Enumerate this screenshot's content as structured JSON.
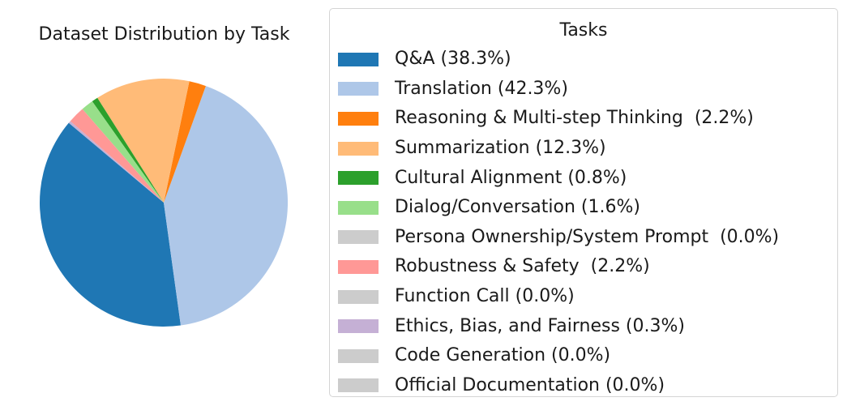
{
  "chart_data": {
    "type": "pie",
    "title": "Dataset Distribution by Task",
    "legend_title": "Tasks",
    "legend_placement": "right",
    "start_angle_deg": 140,
    "direction": "counterclockwise",
    "slices": [
      {
        "label": "Q&A (38.3%)",
        "value": 38.3,
        "color": "#1f77b4"
      },
      {
        "label": "Translation (42.3%)",
        "value": 42.3,
        "color": "#aec7e8"
      },
      {
        "label": "Reasoning & Multi-step Thinking  (2.2%)",
        "value": 2.2,
        "color": "#ff7f0e"
      },
      {
        "label": "Summarization (12.3%)",
        "value": 12.3,
        "color": "#ffbb78"
      },
      {
        "label": "Cultural Alignment (0.8%)",
        "value": 0.8,
        "color": "#2ca02c"
      },
      {
        "label": "Dialog/Conversation (1.6%)",
        "value": 1.6,
        "color": "#98df8a"
      },
      {
        "label": "Persona Ownership/System Prompt  (0.0%)",
        "value": 0.0,
        "color": "#cccccc"
      },
      {
        "label": "Robustness & Safety  (2.2%)",
        "value": 2.2,
        "color": "#ff9896"
      },
      {
        "label": "Function Call (0.0%)",
        "value": 0.0,
        "color": "#cccccc"
      },
      {
        "label": "Ethics, Bias, and Fairness (0.3%)",
        "value": 0.3,
        "color": "#c5b0d5"
      },
      {
        "label": "Code Generation (0.0%)",
        "value": 0.0,
        "color": "#cccccc"
      },
      {
        "label": "Official Documentation (0.0%)",
        "value": 0.0,
        "color": "#cccccc"
      }
    ]
  }
}
